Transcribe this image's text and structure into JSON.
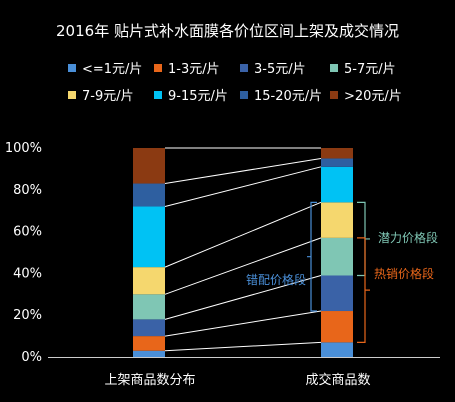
{
  "chart_data": {
    "type": "bar",
    "title": "2016年 贴片式补水面膜各价位区间上架及成交情况",
    "categories": [
      "上架商品数分布",
      "成交商品数"
    ],
    "series": [
      {
        "name": "<=1元/片",
        "color": "#4a8fd8",
        "values": [
          3,
          7
        ]
      },
      {
        "name": "1-3元/片",
        "color": "#e8661a",
        "values": [
          7,
          15
        ]
      },
      {
        "name": "3-5元/片",
        "color": "#3a62a7",
        "values": [
          8,
          17
        ]
      },
      {
        "name": "5-7元/片",
        "color": "#7fc6b4",
        "values": [
          12,
          18
        ]
      },
      {
        "name": "7-9元/片",
        "color": "#f5d76e",
        "values": [
          13,
          17
        ]
      },
      {
        "name": "9-15元/片",
        "color": "#00c2f4",
        "values": [
          29,
          17
        ]
      },
      {
        "name": "15-20元/片",
        "color": "#2e5fa0",
        "values": [
          11,
          4
        ]
      },
      {
        "name": ">20元/片",
        "color": "#8b3a12",
        "values": [
          17,
          5
        ]
      }
    ],
    "ylim": [
      0,
      100
    ],
    "yticks": [
      "0%",
      "20%",
      "40%",
      "60%",
      "80%",
      "100%"
    ],
    "annotations": {
      "potential": {
        "text": "潜力价格段",
        "color": "#7fc6b4"
      },
      "hot": {
        "text": "热销价格段",
        "color": "#e8661a"
      },
      "mismatch": {
        "text": "错配价格段",
        "color": "#4a8fd8"
      }
    }
  }
}
